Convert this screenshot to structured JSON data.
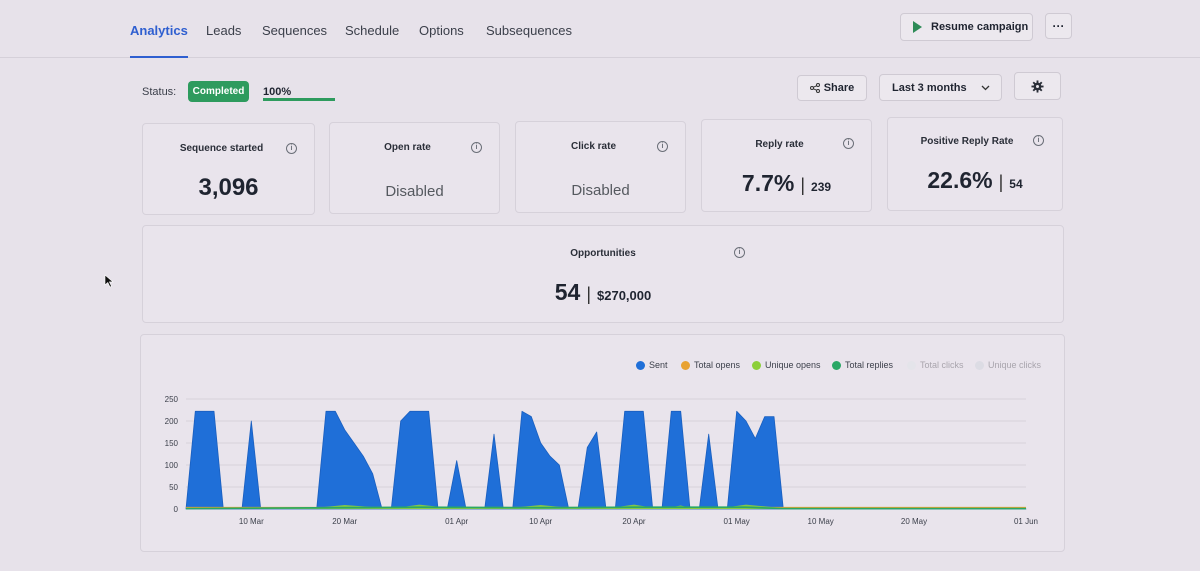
{
  "nav": {
    "tabs": [
      {
        "label": "Analytics",
        "active": true
      },
      {
        "label": "Leads"
      },
      {
        "label": "Sequences"
      },
      {
        "label": "Schedule"
      },
      {
        "label": "Options"
      },
      {
        "label": "Subsequences"
      }
    ],
    "resume_label": "Resume campaign",
    "more_label": "···"
  },
  "status": {
    "label": "Status:",
    "badge": "Completed",
    "progress_text": "100%",
    "progress_value": 1.0,
    "badge_color": "#2e9b5e"
  },
  "toolbar": {
    "share_label": "Share",
    "range_label": "Last 3 months"
  },
  "cards": {
    "sequence_started": {
      "title": "Sequence started",
      "value": "3,096"
    },
    "open_rate": {
      "title": "Open rate",
      "value": "Disabled"
    },
    "click_rate": {
      "title": "Click rate",
      "value": "Disabled"
    },
    "reply_rate": {
      "title": "Reply rate",
      "value": "7.7%",
      "sub": "239"
    },
    "positive_reply_rate": {
      "title": "Positive Reply Rate",
      "value": "22.6%",
      "sub": "54"
    },
    "opportunities": {
      "title": "Opportunities",
      "value": "54",
      "sub": "$270,000"
    }
  },
  "legend": [
    {
      "name": "Sent",
      "color": "#1f6fd8",
      "active": true
    },
    {
      "name": "Total opens",
      "color": "#e8a232",
      "active": true
    },
    {
      "name": "Unique opens",
      "color": "#8ccf3a",
      "active": true
    },
    {
      "name": "Total replies",
      "color": "#2aa866",
      "active": true
    },
    {
      "name": "Total clicks",
      "color": "#e4e4ea",
      "active": false
    },
    {
      "name": "Unique clicks",
      "color": "#dcdce4",
      "active": false
    }
  ],
  "chart_data": {
    "type": "area",
    "x_start": "2025-03-03",
    "x_end": "2025-06-01",
    "x_ticks": [
      "10 Mar",
      "20 Mar",
      "01 Apr",
      "10 Apr",
      "20 Apr",
      "01 May",
      "10 May",
      "20 May",
      "01 Jun"
    ],
    "y_ticks": [
      "0",
      "50",
      "100",
      "150",
      "200",
      "250"
    ],
    "ylim": [
      0,
      250
    ],
    "grid": true,
    "series": [
      {
        "name": "Sent",
        "color": "#1f6fd8",
        "points": [
          [
            "2025-03-03",
            0
          ],
          [
            "2025-03-04",
            222
          ],
          [
            "2025-03-06",
            222
          ],
          [
            "2025-03-07",
            0
          ],
          [
            "2025-03-09",
            0
          ],
          [
            "2025-03-10",
            200
          ],
          [
            "2025-03-11",
            0
          ],
          [
            "2025-03-17",
            0
          ],
          [
            "2025-03-18",
            222
          ],
          [
            "2025-03-19",
            222
          ],
          [
            "2025-03-20",
            180
          ],
          [
            "2025-03-21",
            150
          ],
          [
            "2025-03-22",
            120
          ],
          [
            "2025-03-23",
            80
          ],
          [
            "2025-03-24",
            0
          ],
          [
            "2025-03-25",
            0
          ],
          [
            "2025-03-26",
            200
          ],
          [
            "2025-03-27",
            222
          ],
          [
            "2025-03-29",
            222
          ],
          [
            "2025-03-30",
            0
          ],
          [
            "2025-03-31",
            0
          ],
          [
            "2025-04-01",
            110
          ],
          [
            "2025-04-02",
            0
          ],
          [
            "2025-04-04",
            0
          ],
          [
            "2025-04-05",
            170
          ],
          [
            "2025-04-06",
            0
          ],
          [
            "2025-04-07",
            0
          ],
          [
            "2025-04-08",
            222
          ],
          [
            "2025-04-09",
            210
          ],
          [
            "2025-04-10",
            150
          ],
          [
            "2025-04-11",
            120
          ],
          [
            "2025-04-12",
            100
          ],
          [
            "2025-04-13",
            0
          ],
          [
            "2025-04-14",
            0
          ],
          [
            "2025-04-15",
            140
          ],
          [
            "2025-04-16",
            175
          ],
          [
            "2025-04-17",
            0
          ],
          [
            "2025-04-18",
            0
          ],
          [
            "2025-04-19",
            222
          ],
          [
            "2025-04-21",
            222
          ],
          [
            "2025-04-22",
            0
          ],
          [
            "2025-04-23",
            0
          ],
          [
            "2025-04-24",
            222
          ],
          [
            "2025-04-25",
            222
          ],
          [
            "2025-04-26",
            0
          ],
          [
            "2025-04-27",
            0
          ],
          [
            "2025-04-28",
            170
          ],
          [
            "2025-04-29",
            0
          ],
          [
            "2025-04-30",
            0
          ],
          [
            "2025-05-01",
            222
          ],
          [
            "2025-05-02",
            200
          ],
          [
            "2025-05-03",
            160
          ],
          [
            "2025-05-04",
            210
          ],
          [
            "2025-05-05",
            210
          ],
          [
            "2025-05-06",
            0
          ],
          [
            "2025-06-01",
            0
          ]
        ]
      },
      {
        "name": "Total opens",
        "color": "#e8a232",
        "points": [
          [
            "2025-03-03",
            3
          ],
          [
            "2025-06-01",
            3
          ]
        ]
      },
      {
        "name": "Unique opens",
        "color": "#8ccf3a",
        "points": [
          [
            "2025-03-03",
            2
          ],
          [
            "2025-03-17",
            3
          ],
          [
            "2025-03-20",
            9
          ],
          [
            "2025-03-24",
            3
          ],
          [
            "2025-03-26",
            4
          ],
          [
            "2025-03-28",
            10
          ],
          [
            "2025-03-31",
            3
          ],
          [
            "2025-04-07",
            3
          ],
          [
            "2025-04-10",
            9
          ],
          [
            "2025-04-13",
            3
          ],
          [
            "2025-04-18",
            4
          ],
          [
            "2025-04-20",
            10
          ],
          [
            "2025-04-22",
            3
          ],
          [
            "2025-04-24",
            4
          ],
          [
            "2025-04-25",
            8
          ],
          [
            "2025-04-26",
            3
          ],
          [
            "2025-04-30",
            4
          ],
          [
            "2025-05-02",
            10
          ],
          [
            "2025-05-04",
            6
          ],
          [
            "2025-05-06",
            2
          ],
          [
            "2025-06-01",
            2
          ]
        ]
      },
      {
        "name": "Total replies",
        "color": "#2aa866",
        "points": [
          [
            "2025-03-03",
            1
          ],
          [
            "2025-03-19",
            3
          ],
          [
            "2025-03-28",
            4
          ],
          [
            "2025-04-10",
            3
          ],
          [
            "2025-04-20",
            4
          ],
          [
            "2025-05-02",
            4
          ],
          [
            "2025-05-06",
            1
          ],
          [
            "2025-06-01",
            1
          ]
        ]
      }
    ]
  }
}
